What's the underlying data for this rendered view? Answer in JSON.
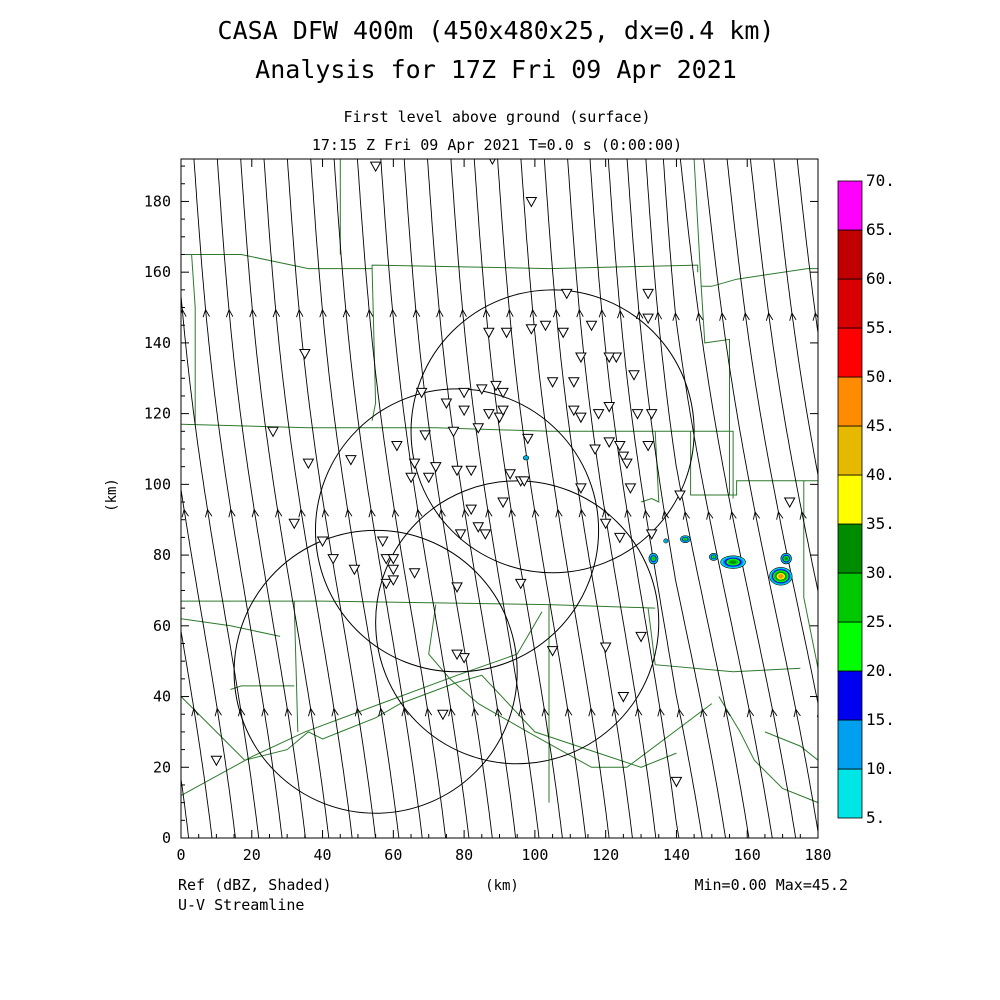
{
  "header": {
    "title_line1": "CASA DFW 400m (450x480x25, dx=0.4 km)",
    "title_line2": "Analysis for 17Z Fri 09 Apr 2021",
    "level_label": "First level above ground (surface)",
    "time_label": "17:15 Z Fri 09 Apr 2021   T=0.0 s (0:00:00)"
  },
  "footer": {
    "field_label": "Ref (dBZ, Shaded)",
    "streamline_label": "U-V Streamline",
    "xlabel": "(km)",
    "minmax_label": "Min=0.00 Max=45.2"
  },
  "chart_data": {
    "type": "heatmap",
    "xlabel": "(km)",
    "ylabel": "(km)",
    "xlim": [
      0,
      180
    ],
    "ylim": [
      0,
      192
    ],
    "x_ticks": [
      "0",
      "20",
      "40",
      "60",
      "80",
      "100",
      "120",
      "140",
      "160",
      "180"
    ],
    "y_ticks": [
      "0",
      "20",
      "40",
      "60",
      "80",
      "100",
      "120",
      "140",
      "160",
      "180"
    ],
    "field": "Ref (dBZ, Shaded)",
    "field_min": 0.0,
    "field_max": 45.2,
    "colorbar": {
      "levels": [
        "5.",
        "10.",
        "15.",
        "20.",
        "25.",
        "30.",
        "35.",
        "40.",
        "45.",
        "50.",
        "55.",
        "60.",
        "65.",
        "70."
      ],
      "colors": [
        "#00e5e5",
        "#00a0f0",
        "#0000f0",
        "#00ff00",
        "#00c800",
        "#008c00",
        "#ffff00",
        "#e6b800",
        "#ff8c00",
        "#ff0000",
        "#d80000",
        "#c00000",
        "#ff00ff"
      ]
    },
    "radar_rings": [
      {
        "cx": 55,
        "cy": 47,
        "r": 40
      },
      {
        "cx": 78,
        "cy": 87,
        "r": 40
      },
      {
        "cx": 95,
        "cy": 61,
        "r": 40
      },
      {
        "cx": 105,
        "cy": 115,
        "r": 40
      }
    ],
    "stations": [
      [
        55,
        190
      ],
      [
        88,
        192
      ],
      [
        99,
        180
      ],
      [
        109,
        154
      ],
      [
        132,
        154
      ],
      [
        132,
        147
      ],
      [
        116,
        145
      ],
      [
        103,
        145
      ],
      [
        99,
        144
      ],
      [
        92,
        143
      ],
      [
        87,
        143
      ],
      [
        108,
        143
      ],
      [
        113,
        136
      ],
      [
        123,
        136
      ],
      [
        121,
        136
      ],
      [
        128,
        131
      ],
      [
        111,
        129
      ],
      [
        105,
        129
      ],
      [
        89,
        128
      ],
      [
        91,
        126
      ],
      [
        85,
        127
      ],
      [
        80,
        126
      ],
      [
        80,
        121
      ],
      [
        87,
        120
      ],
      [
        90,
        119
      ],
      [
        91,
        121
      ],
      [
        68,
        126
      ],
      [
        75,
        123
      ],
      [
        111,
        121
      ],
      [
        113,
        119
      ],
      [
        121,
        122
      ],
      [
        118,
        120
      ],
      [
        129,
        120
      ],
      [
        133,
        120
      ],
      [
        121,
        112
      ],
      [
        124,
        111
      ],
      [
        132,
        111
      ],
      [
        84,
        116
      ],
      [
        77,
        115
      ],
      [
        69,
        114
      ],
      [
        117,
        110
      ],
      [
        125,
        108
      ],
      [
        98,
        113
      ],
      [
        72,
        105
      ],
      [
        78,
        104
      ],
      [
        82,
        104
      ],
      [
        93,
        103
      ],
      [
        66,
        106
      ],
      [
        65,
        102
      ],
      [
        70,
        102
      ],
      [
        61,
        111
      ],
      [
        35,
        137
      ],
      [
        26,
        115
      ],
      [
        36,
        106
      ],
      [
        48,
        107
      ],
      [
        32,
        89
      ],
      [
        40,
        84
      ],
      [
        43,
        79
      ],
      [
        57,
        84
      ],
      [
        58,
        79
      ],
      [
        60,
        79
      ],
      [
        60,
        76
      ],
      [
        49,
        76
      ],
      [
        58,
        72
      ],
      [
        60,
        73
      ],
      [
        66,
        75
      ],
      [
        78,
        71
      ],
      [
        79,
        86
      ],
      [
        82,
        93
      ],
      [
        84,
        88
      ],
      [
        86,
        86
      ],
      [
        91,
        95
      ],
      [
        96,
        101
      ],
      [
        97,
        101
      ],
      [
        113,
        99
      ],
      [
        127,
        99
      ],
      [
        126,
        106
      ],
      [
        141,
        97
      ],
      [
        172,
        95
      ],
      [
        120,
        89
      ],
      [
        124,
        85
      ],
      [
        133,
        86
      ],
      [
        96,
        72
      ],
      [
        130,
        57
      ],
      [
        120,
        54
      ],
      [
        105,
        53
      ],
      [
        80,
        51
      ],
      [
        78,
        52
      ],
      [
        74,
        35
      ],
      [
        125,
        40
      ],
      [
        140,
        16
      ],
      [
        10,
        22
      ]
    ],
    "echoes": [
      {
        "x": 169.5,
        "y": 74,
        "rx": 3.2,
        "ry": 2.5,
        "max_dbz": 45.2
      },
      {
        "x": 171,
        "y": 79,
        "rx": 1.5,
        "ry": 1.5,
        "max_dbz": 30
      },
      {
        "x": 156,
        "y": 78,
        "rx": 3.5,
        "ry": 1.8,
        "max_dbz": 32
      },
      {
        "x": 150.5,
        "y": 79.5,
        "rx": 1.2,
        "ry": 1.0,
        "max_dbz": 25
      },
      {
        "x": 133.5,
        "y": 79,
        "rx": 1.3,
        "ry": 1.5,
        "max_dbz": 28
      },
      {
        "x": 142.5,
        "y": 84.5,
        "rx": 1.4,
        "ry": 1.0,
        "max_dbz": 25
      },
      {
        "x": 137,
        "y": 84,
        "rx": 0.6,
        "ry": 0.6,
        "max_dbz": 10
      },
      {
        "x": 97.5,
        "y": 107.5,
        "rx": 0.8,
        "ry": 0.6,
        "max_dbz": 10
      }
    ],
    "counties": [
      [
        [
          0,
          165
        ],
        [
          17,
          165
        ],
        [
          36,
          161
        ],
        [
          54,
          161
        ],
        [
          54,
          162
        ],
        [
          104,
          161
        ],
        [
          146,
          162
        ],
        [
          146,
          160
        ]
      ],
      [
        [
          0,
          117
        ],
        [
          36,
          116
        ],
        [
          72,
          116
        ],
        [
          104,
          115
        ],
        [
          144,
          115
        ],
        [
          156,
          115
        ],
        [
          156,
          96
        ]
      ],
      [
        [
          0,
          67
        ],
        [
          40,
          67
        ],
        [
          104,
          66
        ],
        [
          134,
          65
        ]
      ],
      [
        [
          4,
          117
        ],
        [
          4,
          150
        ],
        [
          3,
          165
        ]
      ],
      [
        [
          54,
          161
        ],
        [
          55,
          123
        ],
        [
          54,
          118
        ]
      ],
      [
        [
          45,
          192
        ],
        [
          45,
          165
        ]
      ],
      [
        [
          145,
          192
        ],
        [
          147,
          156
        ],
        [
          148,
          140
        ],
        [
          155,
          141
        ],
        [
          155,
          97
        ],
        [
          156,
          97
        ]
      ],
      [
        [
          147,
          156
        ],
        [
          150,
          156
        ],
        [
          157,
          158
        ],
        [
          177,
          161
        ],
        [
          180,
          161
        ]
      ],
      [
        [
          134,
          115
        ],
        [
          135,
          95
        ],
        [
          133,
          96
        ],
        [
          130,
          95
        ]
      ],
      [
        [
          144,
          115
        ],
        [
          144,
          97
        ],
        [
          157,
          97
        ],
        [
          157,
          101
        ],
        [
          180,
          101
        ]
      ],
      [
        [
          176,
          101
        ],
        [
          176,
          68
        ],
        [
          180,
          48
        ]
      ],
      [
        [
          132,
          65
        ],
        [
          134,
          49
        ],
        [
          156,
          47
        ],
        [
          175,
          48
        ]
      ],
      [
        [
          104,
          66
        ],
        [
          104,
          10
        ]
      ],
      [
        [
          0,
          40
        ],
        [
          10,
          30
        ],
        [
          18,
          22
        ],
        [
          30,
          25
        ],
        [
          36,
          30
        ],
        [
          40,
          28
        ],
        [
          45,
          30
        ],
        [
          55,
          34
        ],
        [
          62,
          38
        ],
        [
          78,
          44
        ],
        [
          85,
          46
        ],
        [
          100,
          30
        ],
        [
          115,
          25
        ],
        [
          130,
          20
        ],
        [
          140,
          24
        ]
      ],
      [
        [
          14,
          42
        ],
        [
          17,
          43
        ],
        [
          32,
          43
        ]
      ],
      [
        [
          32,
          67
        ],
        [
          33,
          30
        ]
      ],
      [
        [
          0,
          12
        ],
        [
          20,
          23
        ],
        [
          35,
          30
        ],
        [
          78,
          46
        ],
        [
          95,
          52
        ],
        [
          102,
          64
        ]
      ],
      [
        [
          0,
          62
        ],
        [
          14,
          60
        ],
        [
          28,
          57
        ]
      ],
      [
        [
          72,
          66
        ],
        [
          70,
          52
        ],
        [
          76,
          45
        ],
        [
          84,
          38
        ],
        [
          98,
          30
        ],
        [
          116,
          20
        ],
        [
          126,
          20
        ],
        [
          150,
          38
        ]
      ],
      [
        [
          152,
          40
        ],
        [
          158,
          30
        ],
        [
          162,
          22
        ],
        [
          170,
          14
        ],
        [
          180,
          10
        ]
      ],
      [
        [
          165,
          30
        ],
        [
          175,
          26
        ],
        [
          180,
          22
        ]
      ]
    ]
  }
}
